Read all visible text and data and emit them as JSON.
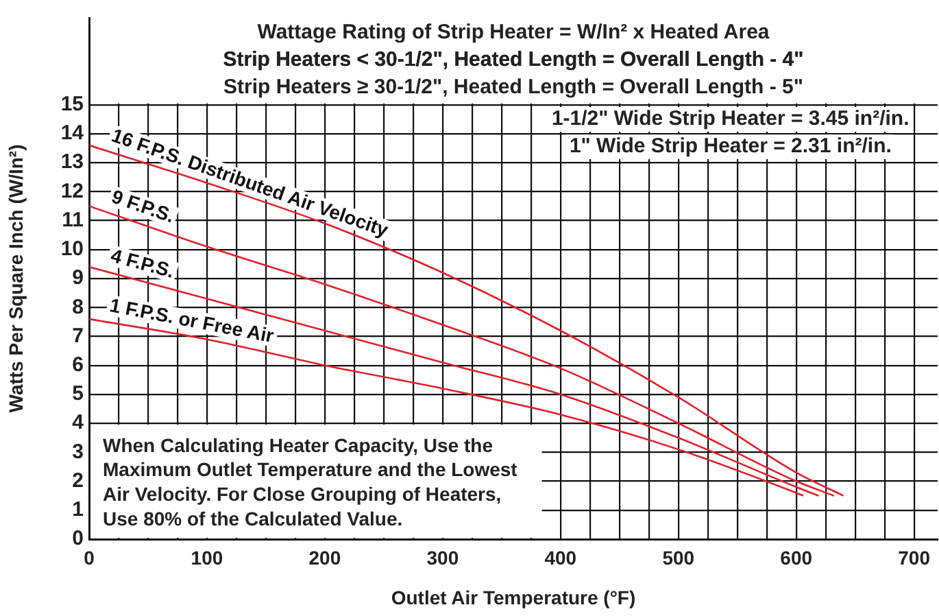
{
  "chart_data": {
    "type": "line",
    "title": "Wattage Rating of Strip Heater = W/In² x Heated Area",
    "xlabel": "Outlet Air Temperature (°F)",
    "ylabel": "Watts Per Square Inch (W/In²)",
    "annotations": [
      "Strip Heaters < 30-1/2\", Heated Length = Overall Length - 4\"",
      "Strip Heaters ≥ 30-1/2\", Heated Length = Overall Length - 5\"",
      "1-1/2\" Wide Strip Heater = 3.45 in²/in.",
      "1\" Wide Strip Heater = 2.31 in²/in.",
      "When Calculating Heater Capacity, Use the Maximum Outlet Temperature and the Lowest Air Velocity. For Close Grouping of Heaters, Use 80% of the Calculated Value."
    ],
    "series": [
      {
        "name": "16 F.P.S. Distributed Air Velocity",
        "color": "#e3212b",
        "x": [
          0,
          100,
          200,
          300,
          400,
          500,
          600,
          640
        ],
        "values": [
          13.6,
          12.3,
          10.9,
          9.2,
          7.2,
          4.9,
          2.3,
          1.5
        ]
      },
      {
        "name": "9 F.P.S.",
        "color": "#e3212b",
        "x": [
          0,
          100,
          200,
          300,
          400,
          500,
          600,
          632
        ],
        "values": [
          11.5,
          10.1,
          8.8,
          7.4,
          5.9,
          4.0,
          2.0,
          1.5
        ]
      },
      {
        "name": "4 F.P.S.",
        "color": "#e3212b",
        "x": [
          0,
          100,
          200,
          300,
          400,
          500,
          600,
          619
        ],
        "values": [
          9.4,
          8.3,
          7.2,
          6.1,
          5.0,
          3.5,
          1.8,
          1.5
        ]
      },
      {
        "name": "1 F.P.S. or Free Air",
        "color": "#e3212b",
        "x": [
          0,
          100,
          200,
          300,
          400,
          500,
          600,
          606
        ],
        "values": [
          7.6,
          6.9,
          6.0,
          5.2,
          4.3,
          3.1,
          1.6,
          1.5
        ]
      }
    ],
    "xlim": [
      0,
      720
    ],
    "xticks": [
      0,
      {
        "value": 25,
        "label": null
      },
      100,
      {
        "value": 50,
        "label": null
      },
      {
        "value": 75,
        "label": null
      },
      {
        "value": 125,
        "label": null
      },
      {
        "value": 150,
        "label": null
      },
      {
        "value": 175,
        "label": null
      },
      200,
      {
        "value": 225,
        "label": null
      },
      {
        "value": 250,
        "label": null
      },
      {
        "value": 275,
        "label": null
      },
      300,
      {
        "value": 325,
        "label": null
      },
      {
        "value": 350,
        "label": null
      },
      {
        "value": 375,
        "label": null
      },
      400,
      {
        "value": 425,
        "label": null
      },
      {
        "value": 450,
        "label": null
      },
      {
        "value": 475,
        "label": null
      },
      500,
      {
        "value": 525,
        "label": null
      },
      {
        "value": 550,
        "label": null
      },
      {
        "value": 575,
        "label": null
      },
      600,
      {
        "value": 625,
        "label": null
      },
      {
        "value": 650,
        "label": null
      },
      {
        "value": 675,
        "label": null
      },
      700
    ],
    "ylim": [
      0,
      18
    ],
    "yticks": [
      0,
      1,
      2,
      3,
      4,
      5,
      6,
      7,
      8,
      9,
      10,
      11,
      12,
      13,
      14,
      15
    ],
    "grid": true,
    "legend": false,
    "marker": "none",
    "line_style": "solid"
  }
}
